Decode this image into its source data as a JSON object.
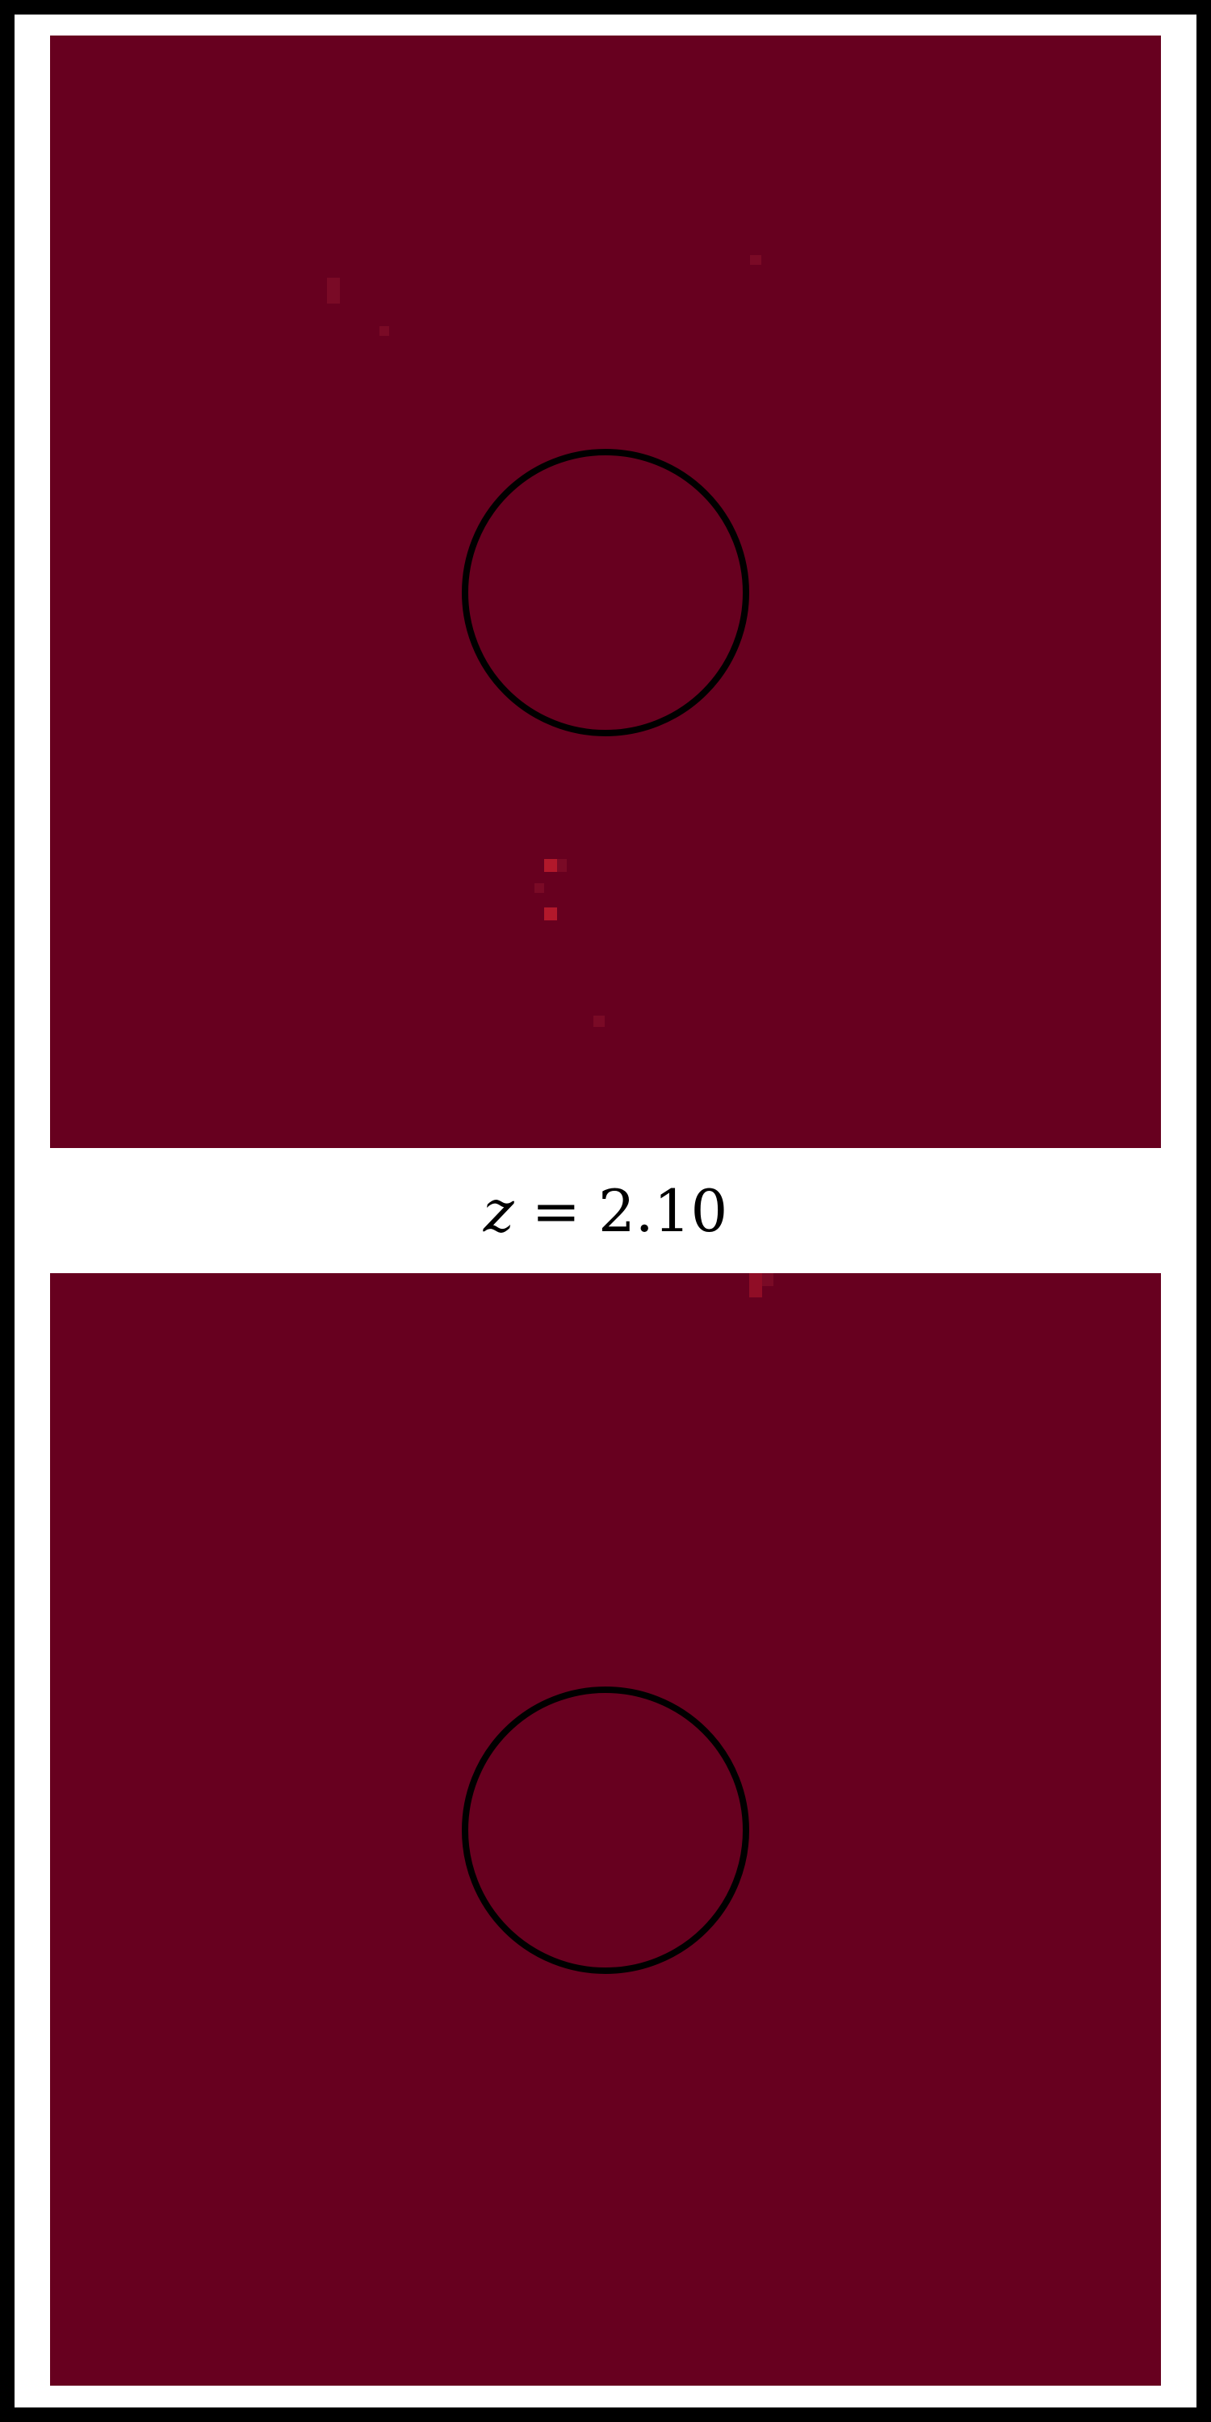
{
  "colors": {
    "background": "#67001f",
    "ring": "#000000",
    "bright_pixel": "#b2182b",
    "faint_pixel": "#7a0a26",
    "frame": "#000000",
    "page": "#ffffff"
  },
  "label": {
    "variable": "z",
    "equals": "=",
    "value": "2.10"
  }
}
